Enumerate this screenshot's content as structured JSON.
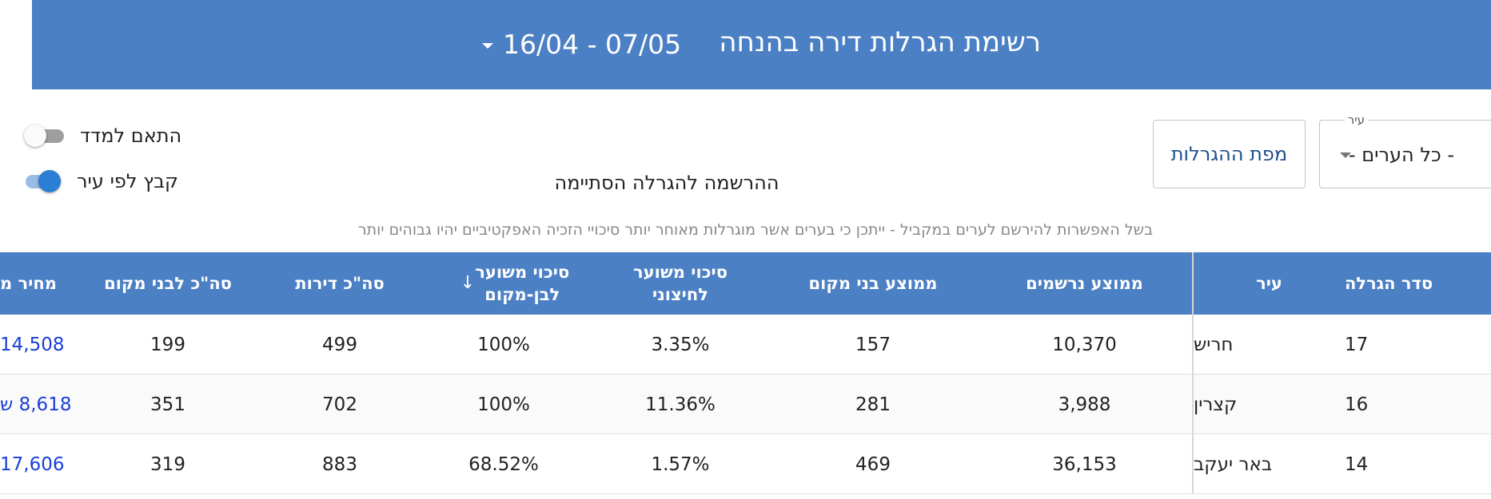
{
  "header": {
    "title": "רשימת הגרלות דירה בהנחה",
    "date_range": "16/04 - 07/05"
  },
  "filters": {
    "city_label": "עיר",
    "city_value": "- כל הערים -",
    "map_button": "מפת ההגרלות",
    "registration_status": "ההרשמה להגרלה הסתיימה",
    "toggle_fit": {
      "label": "התאם למדד",
      "on": false
    },
    "toggle_group": {
      "label": "קבץ לפי עיר",
      "on": true
    }
  },
  "notice": "בשל האפשרות להירשם לערים במקביל - ייתכן כי בערים אשר מוגרלות מאוחר יותר סיכויי הזכיה האפקטיביים יהיו גבוהים יותר",
  "table": {
    "columns": {
      "order": "סדר הגרלה",
      "city": "עיר",
      "avg_registered": "ממוצע נרשמים",
      "avg_locals": "ממוצע בני מקום",
      "chance_outsider_1": "סיכוי משוער",
      "chance_outsider_2": "לחיצוני",
      "chance_local_1": "סיכוי משוער",
      "chance_local_2": "לבן-מקום",
      "total_apartments": "סה\"כ דירות",
      "total_locals": "סה\"כ לבני מקום",
      "price": "מחיר מ"
    },
    "sort_icon": "↓",
    "rows": [
      {
        "order": "17",
        "city": "חריש",
        "avg_registered": "10,370",
        "avg_locals": "157",
        "chance_outsider": "3.35%",
        "chance_local": "100%",
        "total_apartments": "499",
        "total_locals": "199",
        "price": "14,508"
      },
      {
        "order": "16",
        "city": "קצרין",
        "avg_registered": "3,988",
        "avg_locals": "281",
        "chance_outsider": "11.36%",
        "chance_local": "100%",
        "total_apartments": "702",
        "total_locals": "351",
        "price": "8,618 ש"
      },
      {
        "order": "14",
        "city": "באר יעקב",
        "avg_registered": "36,153",
        "avg_locals": "469",
        "chance_outsider": "1.57%",
        "chance_local": "68.52%",
        "total_apartments": "883",
        "total_locals": "319",
        "price": "17,606"
      }
    ]
  }
}
